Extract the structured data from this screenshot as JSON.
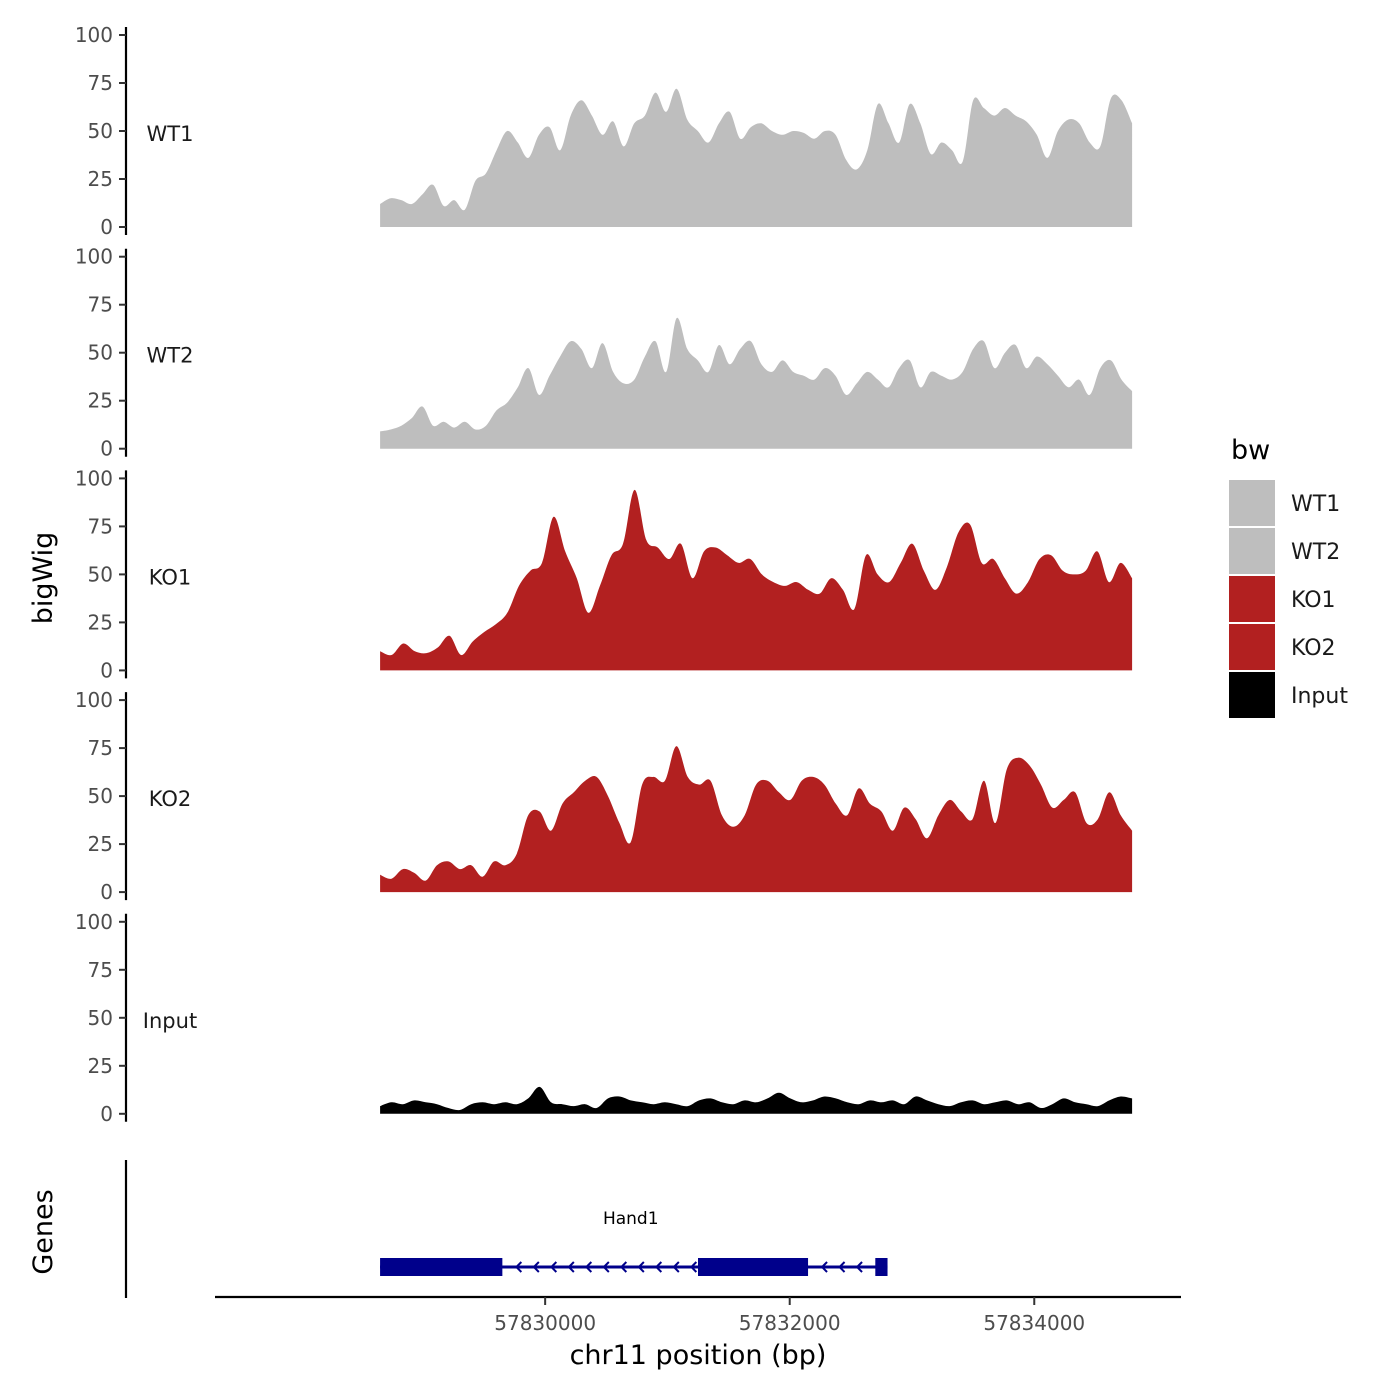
{
  "chart_data": {
    "type": "area",
    "title": "",
    "ylabel": "bigWig",
    "xlabel": "chr11 position (bp)",
    "xlim": [
      57827300,
      57835200
    ],
    "data_xrange": [
      57828650,
      57834800
    ],
    "ylim": [
      0,
      100
    ],
    "y_ticks": [
      "0",
      "25",
      "50",
      "75",
      "100"
    ],
    "x_ticks": [
      {
        "value": 57830000,
        "label": "57830000"
      },
      {
        "value": 57832000,
        "label": "57832000"
      },
      {
        "value": 57834000,
        "label": "57834000"
      }
    ],
    "series": [
      {
        "name": "WT1",
        "color": "#bebebe",
        "values": [
          12,
          15,
          14,
          12,
          17,
          22,
          11,
          14,
          9,
          24,
          28,
          40,
          50,
          44,
          36,
          48,
          52,
          40,
          58,
          66,
          58,
          48,
          55,
          42,
          54,
          58,
          70,
          60,
          72,
          56,
          50,
          44,
          54,
          60,
          46,
          52,
          54,
          50,
          48,
          50,
          49,
          46,
          50,
          48,
          35,
          30,
          40,
          64,
          54,
          44,
          64,
          54,
          38,
          44,
          40,
          34,
          66,
          62,
          58,
          62,
          58,
          55,
          48,
          36,
          50,
          56,
          54,
          44,
          42,
          67,
          66,
          54
        ]
      },
      {
        "name": "WT2",
        "color": "#bebebe",
        "values": [
          9,
          10,
          12,
          16,
          22,
          12,
          14,
          11,
          14,
          10,
          12,
          20,
          24,
          32,
          42,
          28,
          38,
          48,
          56,
          52,
          42,
          55,
          40,
          34,
          36,
          48,
          56,
          40,
          68,
          52,
          46,
          40,
          54,
          44,
          52,
          56,
          44,
          40,
          46,
          40,
          38,
          36,
          42,
          38,
          28,
          34,
          40,
          36,
          32,
          42,
          46,
          32,
          40,
          38,
          36,
          40,
          52,
          56,
          42,
          50,
          54,
          42,
          48,
          44,
          38,
          32,
          36,
          28,
          42,
          46,
          36,
          30
        ]
      },
      {
        "name": "KO1",
        "color": "#b22020",
        "values": [
          10,
          8,
          14,
          10,
          9,
          12,
          18,
          8,
          15,
          20,
          24,
          30,
          44,
          52,
          56,
          80,
          62,
          48,
          30,
          44,
          60,
          66,
          94,
          68,
          64,
          58,
          66,
          48,
          62,
          64,
          60,
          56,
          58,
          50,
          46,
          44,
          46,
          42,
          40,
          48,
          42,
          32,
          60,
          50,
          46,
          56,
          66,
          52,
          42,
          54,
          72,
          76,
          56,
          58,
          48,
          40,
          46,
          58,
          60,
          52,
          50,
          52,
          62,
          46,
          56,
          48
        ]
      },
      {
        "name": "KO2",
        "color": "#b22020",
        "values": [
          9,
          7,
          12,
          10,
          6,
          14,
          16,
          12,
          14,
          8,
          16,
          14,
          20,
          40,
          42,
          32,
          46,
          52,
          58,
          60,
          50,
          36,
          26,
          56,
          60,
          58,
          76,
          60,
          56,
          58,
          40,
          34,
          40,
          56,
          58,
          52,
          48,
          58,
          60,
          56,
          46,
          40,
          54,
          46,
          42,
          32,
          44,
          38,
          28,
          40,
          48,
          42,
          38,
          58,
          36,
          64,
          70,
          66,
          56,
          44,
          48,
          52,
          36,
          38,
          52,
          40,
          32
        ]
      },
      {
        "name": "Input",
        "color": "#000000",
        "values": [
          4,
          6,
          5,
          7,
          6,
          5,
          3,
          2,
          5,
          6,
          5,
          6,
          5,
          8,
          14,
          6,
          5,
          4,
          5,
          3,
          8,
          9,
          7,
          6,
          5,
          6,
          5,
          4,
          7,
          8,
          6,
          5,
          7,
          6,
          8,
          11,
          8,
          6,
          7,
          9,
          8,
          6,
          5,
          7,
          6,
          7,
          5,
          9,
          7,
          5,
          4,
          6,
          7,
          5,
          6,
          7,
          5,
          6,
          3,
          5,
          8,
          6,
          5,
          4,
          7,
          9,
          8
        ]
      }
    ],
    "genes": {
      "label": "Genes",
      "name": "Hand1",
      "strand": "-",
      "start": 57828650,
      "end": 57832800,
      "exons": [
        {
          "start": 57828650,
          "end": 57829650
        },
        {
          "start": 57831250,
          "end": 57832150
        },
        {
          "start": 57832700,
          "end": 57832800
        }
      ],
      "color": "#00008b"
    },
    "legend": {
      "title": "bw",
      "position": "right",
      "items": [
        {
          "label": "WT1",
          "color": "#bebebe"
        },
        {
          "label": "WT2",
          "color": "#bebebe"
        },
        {
          "label": "KO1",
          "color": "#b22020"
        },
        {
          "label": "KO2",
          "color": "#b22020"
        },
        {
          "label": "Input",
          "color": "#000000"
        }
      ]
    },
    "grid": false
  }
}
